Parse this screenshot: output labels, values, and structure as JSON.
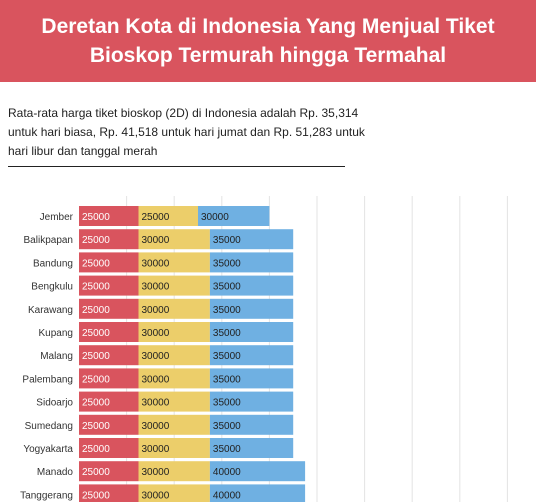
{
  "header": {
    "title_line1": "Deretan Kota di Indonesia Yang Menjual Tiket",
    "title_line2": "Bioskop Termurah hingga Termahal"
  },
  "description": "Rata-rata harga tiket bioskop (2D) di Indonesia adalah Rp. 35,314 untuk hari biasa, Rp. 41,518 untuk hari jumat dan Rp. 51,283 untuk hari libur dan tanggal merah",
  "colors": {
    "banner": "#d9545e",
    "series": [
      "#d9545e",
      "#ecce6a",
      "#6fb0e2"
    ]
  },
  "chart_data": {
    "type": "bar",
    "orientation": "horizontal",
    "stacked": true,
    "title": "Deretan Kota di Indonesia Yang Menjual Tiket Bioskop Termurah hingga Termahal",
    "categories": [
      "Jember",
      "Balikpapan",
      "Bandung",
      "Bengkulu",
      "Karawang",
      "Kupang",
      "Malang",
      "Palembang",
      "Sidoarjo",
      "Sumedang",
      "Yogyakarta",
      "Manado",
      "Tanggerang"
    ],
    "series": [
      {
        "color": "#d9545e",
        "values": [
          25000,
          25000,
          25000,
          25000,
          25000,
          25000,
          25000,
          25000,
          25000,
          25000,
          25000,
          25000,
          25000
        ]
      },
      {
        "color": "#ecce6a",
        "values": [
          25000,
          30000,
          30000,
          30000,
          30000,
          30000,
          30000,
          30000,
          30000,
          30000,
          30000,
          30000,
          30000
        ]
      },
      {
        "color": "#6fb0e2",
        "values": [
          30000,
          35000,
          35000,
          35000,
          35000,
          35000,
          35000,
          35000,
          35000,
          35000,
          35000,
          40000,
          40000
        ]
      }
    ],
    "xlim": [
      0,
      200000
    ],
    "grid": true,
    "legend": "none"
  }
}
